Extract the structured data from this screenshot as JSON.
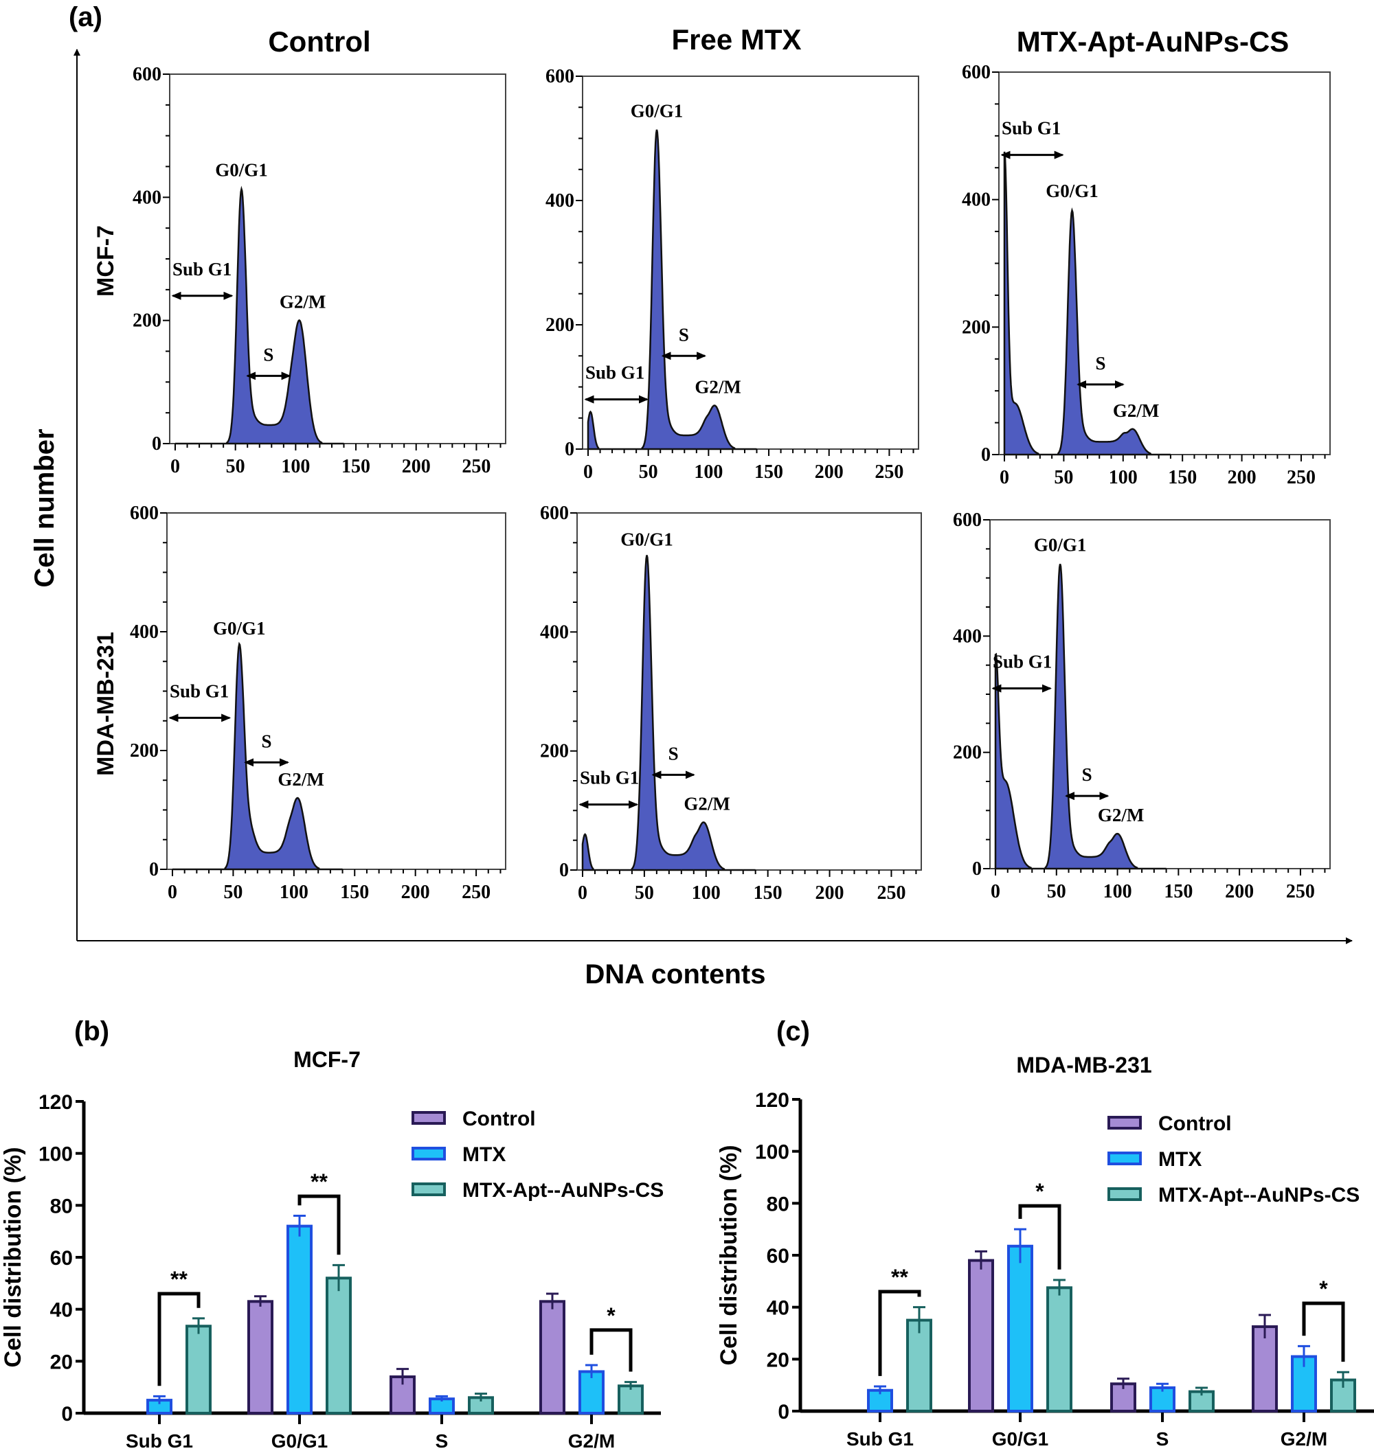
{
  "panel_labels": {
    "a": "(a)",
    "b": "(b)",
    "c": "(c)"
  },
  "chart_data": [
    {
      "type": "area",
      "kind": "flow-cytometry-histograms",
      "xlabel": "DNA contents",
      "ylabel": "Cell number",
      "column_titles": [
        "Control",
        "Free MTX",
        "MTX-Apt-AuNPs-CS"
      ],
      "row_titles": [
        "MCF-7",
        "MDA-MB-231"
      ],
      "xlim": [
        0,
        270
      ],
      "ylim": [
        0,
        600
      ],
      "x_ticks": [
        "0",
        "50",
        "100",
        "150",
        "200",
        "250"
      ],
      "y_ticks": [
        "0",
        "200",
        "400",
        "600"
      ],
      "phase_labels": {
        "sub_g1": "Sub G1",
        "g0g1": "G0/G1",
        "s": "S",
        "g2m": "G2/M"
      },
      "fill_color": "#4f5cc0",
      "panels": [
        {
          "row": "MCF-7",
          "column": "Control",
          "sub_g1_peak": [],
          "g0g1_peak": {
            "x": 55,
            "count": 410
          },
          "g2m_peak": {
            "x": 103,
            "count": 200
          },
          "s_level": 30
        },
        {
          "row": "MCF-7",
          "column": "Free MTX",
          "sub_g1_peak": [
            {
              "x": 2,
              "count": 60
            }
          ],
          "g0g1_peak": {
            "x": 57,
            "count": 510
          },
          "g2m_peak": {
            "x": 105,
            "count": 70
          },
          "s_level": 22
        },
        {
          "row": "MCF-7",
          "column": "MTX-Apt-AuNPs-CS",
          "sub_g1_peak": [
            {
              "x": 0,
              "count": 440
            },
            {
              "x": 9,
              "count": 80
            }
          ],
          "g0g1_peak": {
            "x": 57,
            "count": 380
          },
          "g2m_peak": {
            "x": 108,
            "count": 40
          },
          "s_level": 20
        },
        {
          "row": "MDA-MB-231",
          "column": "Control",
          "sub_g1_peak": [],
          "g0g1_peak": {
            "x": 55,
            "count": 370
          },
          "g2m_peak": {
            "x": 103,
            "count": 120
          },
          "s_level": 28
        },
        {
          "row": "MDA-MB-231",
          "column": "Free MTX",
          "sub_g1_peak": [
            {
              "x": 2,
              "count": 60
            }
          ],
          "g0g1_peak": {
            "x": 52,
            "count": 525
          },
          "g2m_peak": {
            "x": 98,
            "count": 80
          },
          "s_level": 25
        },
        {
          "row": "MDA-MB-231",
          "column": "MTX-Apt-AuNPs-CS",
          "sub_g1_peak": [
            {
              "x": 0,
              "count": 290
            },
            {
              "x": 8,
              "count": 150
            }
          ],
          "g0g1_peak": {
            "x": 53,
            "count": 520
          },
          "g2m_peak": {
            "x": 100,
            "count": 60
          },
          "s_level": 20
        }
      ]
    },
    {
      "type": "bar",
      "title": "MCF-7",
      "ylabel": "Cell distribution (%)",
      "ylim": [
        0,
        120
      ],
      "y_ticks": [
        "0",
        "20",
        "40",
        "60",
        "80",
        "100",
        "120"
      ],
      "categories": [
        "Sub G1",
        "G0/G1",
        "S",
        "G2/M"
      ],
      "legend_position": "top-right",
      "series": [
        {
          "name": "Control",
          "color": "#a58bd4",
          "edge": "#2a1a55",
          "values": [
            0,
            43,
            14,
            43
          ],
          "errors": [
            0,
            2,
            3,
            3
          ]
        },
        {
          "name": "MTX",
          "color": "#1ec0f8",
          "edge": "#1f4fe0",
          "values": [
            5,
            72,
            5.5,
            16
          ],
          "errors": [
            1.5,
            4,
            1,
            2.5
          ]
        },
        {
          "name": "MTX-Apt--AuNPs-CS",
          "color": "#7cccc8",
          "edge": "#17605e",
          "values": [
            33.5,
            52,
            6,
            10.5
          ],
          "errors": [
            3,
            5,
            1.5,
            1.5
          ]
        }
      ],
      "significance": [
        {
          "category": "Sub G1",
          "label": "**",
          "level": 46
        },
        {
          "category": "G0/G1",
          "label": "**",
          "level": 83.5
        },
        {
          "category": "G2/M",
          "label": "*",
          "level": 32
        }
      ]
    },
    {
      "type": "bar",
      "title": "MDA-MB-231",
      "ylabel": "Cell distribution (%)",
      "ylim": [
        0,
        120
      ],
      "y_ticks": [
        "0",
        "20",
        "40",
        "60",
        "80",
        "100",
        "120"
      ],
      "categories": [
        "Sub G1",
        "G0/G1",
        "S",
        "G2/M"
      ],
      "legend_position": "top-right",
      "series": [
        {
          "name": "Control",
          "color": "#a58bd4",
          "edge": "#2a1a55",
          "values": [
            0,
            58,
            10.5,
            32.5
          ],
          "errors": [
            0,
            3.5,
            2,
            4.5
          ]
        },
        {
          "name": "MTX",
          "color": "#1ec0f8",
          "edge": "#1f4fe0",
          "values": [
            8,
            63.5,
            9,
            21
          ],
          "errors": [
            1.5,
            6.5,
            1.5,
            4
          ]
        },
        {
          "name": "MTX-Apt--AuNPs-CS",
          "color": "#7cccc8",
          "edge": "#17605e",
          "values": [
            35,
            47.5,
            7.5,
            12
          ],
          "errors": [
            5,
            3,
            1.5,
            3
          ]
        }
      ],
      "significance": [
        {
          "category": "Sub G1",
          "label": "**",
          "level": 46
        },
        {
          "category": "G0/G1",
          "label": "*",
          "level": 79
        },
        {
          "category": "G2/M",
          "label": "*",
          "level": 41.5
        }
      ]
    }
  ]
}
